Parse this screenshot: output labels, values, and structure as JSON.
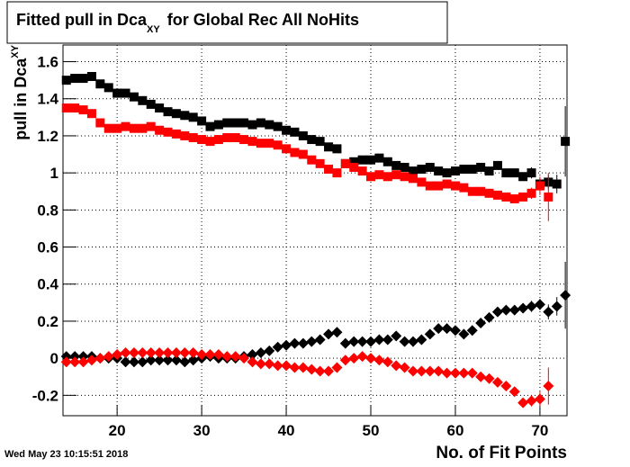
{
  "chart_data": {
    "type": "scatter",
    "title": "Fitted pull in Dca",
    "title_subscript": "XY",
    "title_suffix": "for Global Rec All NoHits",
    "y_label": "pull in Dca",
    "y_label_subscript": "XY",
    "x_label": "No. of Fit Points",
    "timestamp": "Wed May 23 10:15:51 2018",
    "x": [
      14,
      15,
      16,
      17,
      18,
      19,
      20,
      21,
      22,
      23,
      24,
      25,
      26,
      27,
      28,
      29,
      30,
      31,
      32,
      33,
      34,
      35,
      36,
      37,
      38,
      39,
      40,
      41,
      42,
      43,
      44,
      45,
      46,
      47,
      48,
      49,
      50,
      51,
      52,
      53,
      54,
      55,
      56,
      57,
      58,
      59,
      60,
      61,
      62,
      63,
      64,
      65,
      66,
      67,
      68,
      69,
      70,
      71,
      72,
      73
    ],
    "xlim": [
      13.6,
      73.2
    ],
    "xticks": [
      20,
      30,
      40,
      50,
      60,
      70
    ],
    "ylim": [
      -0.31,
      1.69
    ],
    "yticks": [
      -0.2,
      0,
      0.2,
      0.4,
      0.6,
      0.8,
      1,
      1.2,
      1.4,
      1.6
    ],
    "grid": true,
    "series": [
      {
        "color": "#000000",
        "marker": "square",
        "values": [
          1.5,
          1.51,
          1.51,
          1.52,
          1.48,
          1.46,
          1.43,
          1.43,
          1.41,
          1.39,
          1.37,
          1.35,
          1.33,
          1.32,
          1.31,
          1.3,
          1.28,
          1.25,
          1.26,
          1.27,
          1.27,
          1.27,
          1.26,
          1.27,
          1.26,
          1.25,
          1.23,
          1.22,
          1.2,
          1.18,
          1.17,
          1.14,
          1.13,
          1.05,
          1.06,
          1.07,
          1.07,
          1.08,
          1.06,
          1.04,
          1.03,
          1.01,
          1.02,
          1.03,
          1.01,
          1.0,
          1.01,
          1.02,
          1.02,
          1.03,
          1.01,
          1.04,
          1.0,
          1.0,
          0.98,
          1.0,
          0.94,
          0.95,
          0.94,
          1.17
        ],
        "errors": [
          null,
          null,
          null,
          null,
          null,
          null,
          null,
          null,
          null,
          null,
          null,
          null,
          null,
          null,
          null,
          null,
          null,
          null,
          null,
          null,
          null,
          null,
          null,
          null,
          null,
          null,
          null,
          null,
          null,
          null,
          null,
          null,
          null,
          null,
          null,
          null,
          null,
          null,
          null,
          null,
          null,
          null,
          null,
          null,
          null,
          null,
          null,
          null,
          null,
          null,
          null,
          null,
          null,
          null,
          null,
          0.03,
          0.03,
          0.04,
          0.05,
          0.19
        ]
      },
      {
        "color": "#ff0000",
        "marker": "square",
        "values": [
          1.35,
          1.35,
          1.34,
          1.32,
          1.27,
          1.24,
          1.24,
          1.25,
          1.24,
          1.24,
          1.25,
          1.23,
          1.22,
          1.21,
          1.2,
          1.19,
          1.18,
          1.17,
          1.18,
          1.19,
          1.19,
          1.18,
          1.17,
          1.16,
          1.16,
          1.15,
          1.13,
          1.11,
          1.1,
          1.07,
          1.05,
          1.02,
          1.0,
          1.05,
          1.03,
          1.01,
          0.98,
          0.99,
          0.98,
          0.99,
          0.98,
          0.97,
          0.95,
          0.93,
          0.93,
          0.94,
          0.93,
          0.92,
          0.9,
          0.9,
          0.89,
          0.88,
          0.87,
          0.86,
          0.87,
          0.89,
          0.93,
          0.87,
          null,
          null
        ],
        "errors": [
          null,
          null,
          null,
          null,
          null,
          null,
          null,
          null,
          null,
          null,
          null,
          null,
          null,
          null,
          null,
          null,
          null,
          null,
          null,
          null,
          null,
          null,
          null,
          null,
          null,
          null,
          null,
          null,
          null,
          null,
          null,
          null,
          null,
          null,
          null,
          null,
          null,
          null,
          null,
          null,
          null,
          null,
          null,
          null,
          null,
          null,
          null,
          null,
          null,
          null,
          null,
          null,
          null,
          null,
          null,
          0.03,
          0.05,
          0.13,
          null,
          null
        ]
      },
      {
        "color": "#000000",
        "marker": "diamond",
        "values": [
          0.01,
          0.01,
          0.01,
          0.01,
          0,
          0,
          0,
          -0.02,
          -0.02,
          -0.02,
          -0.01,
          -0.01,
          -0.01,
          -0.01,
          -0.02,
          -0.01,
          0,
          0.01,
          0,
          0,
          0,
          0.01,
          0.02,
          0.03,
          0.04,
          0.06,
          0.07,
          0.08,
          0.08,
          0.09,
          0.1,
          0.13,
          0.14,
          0.08,
          0.09,
          0.09,
          0.09,
          0.1,
          0.1,
          0.12,
          0.09,
          0.09,
          0.1,
          0.13,
          0.16,
          0.16,
          0.15,
          0.13,
          0.15,
          0.19,
          0.22,
          0.25,
          0.26,
          0.26,
          0.27,
          0.28,
          0.29,
          0.25,
          0.28,
          0.34
        ],
        "errors": [
          null,
          null,
          null,
          null,
          null,
          null,
          null,
          null,
          null,
          null,
          null,
          null,
          null,
          null,
          null,
          null,
          null,
          null,
          null,
          null,
          null,
          null,
          null,
          null,
          null,
          null,
          null,
          null,
          null,
          null,
          null,
          null,
          null,
          null,
          null,
          null,
          null,
          null,
          null,
          null,
          null,
          null,
          null,
          null,
          null,
          null,
          null,
          null,
          null,
          null,
          null,
          null,
          null,
          null,
          null,
          0.03,
          0.03,
          0.04,
          0.05,
          0.18
        ]
      },
      {
        "color": "#ff0000",
        "marker": "diamond",
        "values": [
          -0.02,
          -0.02,
          -0.02,
          -0.01,
          0,
          0.01,
          0.02,
          0.03,
          0.03,
          0.03,
          0.03,
          0.03,
          0.03,
          0.03,
          0.03,
          0.03,
          0.02,
          0.02,
          0.02,
          0.01,
          0.01,
          0,
          -0.02,
          -0.03,
          -0.03,
          -0.04,
          -0.04,
          -0.05,
          -0.05,
          -0.06,
          -0.07,
          -0.07,
          -0.05,
          -0.01,
          0,
          0.01,
          0,
          -0.01,
          -0.02,
          -0.04,
          -0.05,
          -0.07,
          -0.07,
          -0.07,
          -0.07,
          -0.08,
          -0.08,
          -0.08,
          -0.08,
          -0.1,
          -0.11,
          -0.13,
          -0.15,
          -0.18,
          -0.24,
          -0.23,
          -0.22,
          -0.15,
          null,
          null
        ],
        "errors": [
          null,
          null,
          null,
          null,
          null,
          null,
          null,
          null,
          null,
          null,
          null,
          null,
          null,
          null,
          null,
          null,
          null,
          null,
          null,
          null,
          null,
          null,
          null,
          null,
          null,
          null,
          null,
          null,
          null,
          null,
          null,
          null,
          null,
          null,
          null,
          null,
          null,
          null,
          null,
          null,
          null,
          null,
          null,
          null,
          null,
          null,
          null,
          null,
          null,
          null,
          null,
          null,
          null,
          null,
          null,
          0.03,
          0.04,
          0.1,
          null,
          null
        ]
      }
    ]
  }
}
